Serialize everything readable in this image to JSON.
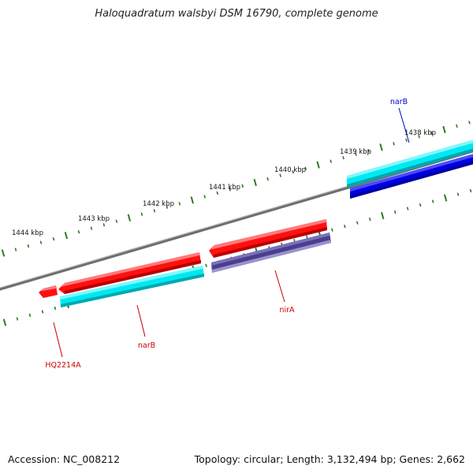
{
  "title": "Haloquadratum walsbyi DSM 16790, complete genome",
  "footer": {
    "accession": "Accession: NC_008212",
    "summary": "Topology: circular; Length: 3,132,494 bp; Genes: 2,662"
  },
  "scale": {
    "unit": "kbp",
    "labels": [
      {
        "kbp": 1438,
        "text": "1438 kbp"
      },
      {
        "kbp": 1439,
        "text": "1439 kbp"
      },
      {
        "kbp": 1440,
        "text": "1440 kbp"
      },
      {
        "kbp": 1441,
        "text": "1441 kbp"
      },
      {
        "kbp": 1442,
        "text": "1442 kbp"
      },
      {
        "kbp": 1443,
        "text": "1443 kbp"
      },
      {
        "kbp": 1444,
        "text": "1444 kbp"
      }
    ]
  },
  "genes": [
    {
      "name": "narB",
      "strand": "forward",
      "label": "narB",
      "color": "#0000cc"
    },
    {
      "name": "nirA",
      "strand": "reverse",
      "label": "nirA",
      "color": "#cc0000"
    },
    {
      "name": "narB-2",
      "strand": "reverse",
      "label": "narB",
      "color": "#cc0000"
    },
    {
      "name": "HQ2214A",
      "strand": "reverse",
      "label": "HQ2214A",
      "color": "#cc0000"
    }
  ],
  "colors": {
    "backbone": "#777777",
    "tick": "#2e7d1e",
    "cds_reverse": "#ff0000",
    "cds_forward": "#0000ee",
    "gene_band": "#00e5ee",
    "gene_band_reverse_dark": "#4a3f8c"
  }
}
